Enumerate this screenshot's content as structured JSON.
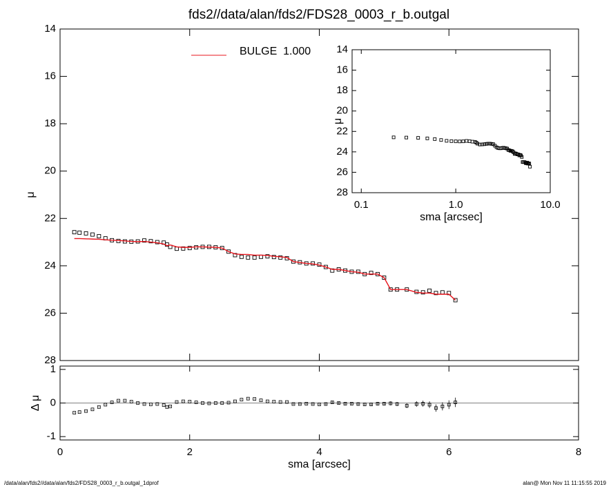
{
  "footer_left": "/data/alan/fds2//data/alan/fds2/FDS28_0003_r_b.outgal_1dprof",
  "footer_right": "alan@  Mon Nov 11 11:15:55 2019",
  "chart_data": [
    {
      "type": "line",
      "title": "fds2//data/alan/fds2/FDS28_0003_r_b.outgal",
      "ylabel": "μ",
      "x": [
        0.22,
        0.3,
        0.4,
        0.5,
        0.6,
        0.7,
        0.8,
        0.9,
        1.0,
        1.1,
        1.2,
        1.3,
        1.4,
        1.5,
        1.6,
        1.65,
        1.7,
        1.8,
        1.9,
        2.0,
        2.1,
        2.2,
        2.3,
        2.4,
        2.5,
        2.6,
        2.7,
        2.8,
        2.9,
        3.0,
        3.1,
        3.2,
        3.3,
        3.4,
        3.5,
        3.6,
        3.7,
        3.8,
        3.9,
        4.0,
        4.1,
        4.2,
        4.3,
        4.4,
        4.5,
        4.6,
        4.7,
        4.8,
        4.9,
        5.0,
        5.1,
        5.2,
        5.35,
        5.5,
        5.6,
        5.7,
        5.8,
        5.9,
        6.0,
        6.1
      ],
      "series": [
        {
          "color": "#000000",
          "marker": "square",
          "values": [
            22.58,
            22.6,
            22.63,
            22.68,
            22.75,
            22.84,
            22.92,
            22.95,
            22.97,
            22.98,
            22.97,
            22.93,
            22.96,
            23.0,
            23.02,
            23.1,
            23.2,
            23.28,
            23.27,
            23.25,
            23.22,
            23.2,
            23.2,
            23.22,
            23.25,
            23.4,
            23.55,
            23.62,
            23.65,
            23.65,
            23.62,
            23.6,
            23.63,
            23.65,
            23.68,
            23.82,
            23.85,
            23.9,
            23.9,
            23.95,
            24.05,
            24.2,
            24.15,
            24.2,
            24.25,
            24.25,
            24.35,
            24.3,
            24.35,
            24.5,
            25.0,
            25.0,
            25.0,
            25.1,
            25.12,
            25.05,
            25.15,
            25.12,
            25.15,
            25.45
          ]
        },
        {
          "name": "BULGE  1.000",
          "color": "#e8141c",
          "values": [
            22.85,
            22.85,
            22.86,
            22.87,
            22.88,
            22.9,
            22.92,
            22.93,
            22.95,
            22.97,
            22.98,
            22.97,
            23.0,
            23.03,
            23.08,
            23.15,
            23.12,
            23.2,
            23.22,
            23.22,
            23.2,
            23.2,
            23.21,
            23.22,
            23.25,
            23.4,
            23.5,
            23.52,
            23.52,
            23.55,
            23.55,
            23.56,
            23.6,
            23.62,
            23.65,
            23.82,
            23.86,
            23.9,
            23.92,
            23.97,
            24.05,
            24.15,
            24.15,
            24.2,
            24.25,
            24.27,
            24.35,
            24.35,
            24.35,
            24.5,
            25.0,
            25.0,
            25.0,
            25.12,
            25.15,
            25.15,
            25.2,
            25.2,
            25.2,
            25.45
          ]
        }
      ],
      "xlim": [
        0,
        8
      ],
      "xticks": [
        0,
        2,
        4,
        6,
        8
      ],
      "ylim": [
        14,
        28
      ],
      "yticks": [
        14,
        16,
        18,
        20,
        22,
        24,
        26,
        28
      ],
      "y_inverted": true,
      "legend": "top"
    },
    {
      "type": "scatter",
      "xlabel": "sma [arcsec]",
      "ylabel": "Δ μ",
      "values": [
        -0.29,
        -0.27,
        -0.24,
        -0.19,
        -0.12,
        -0.05,
        0.02,
        0.07,
        0.07,
        0.04,
        0.0,
        -0.03,
        -0.04,
        -0.03,
        -0.06,
        -0.12,
        -0.1,
        0.03,
        0.05,
        0.04,
        0.02,
        0.0,
        -0.01,
        0.0,
        0.0,
        0.01,
        0.05,
        0.1,
        0.13,
        0.12,
        0.08,
        0.05,
        0.04,
        0.03,
        0.03,
        -0.03,
        -0.03,
        -0.02,
        -0.03,
        -0.04,
        -0.03,
        0.02,
        0.0,
        -0.02,
        -0.02,
        -0.03,
        -0.04,
        -0.04,
        -0.02,
        -0.02,
        -0.01,
        -0.03,
        -0.08,
        -0.03,
        -0.02,
        -0.05,
        -0.15,
        -0.1,
        -0.05,
        0.02
      ],
      "errors": [
        0.01,
        0.01,
        0.01,
        0.01,
        0.01,
        0.01,
        0.01,
        0.01,
        0.01,
        0.01,
        0.01,
        0.01,
        0.01,
        0.01,
        0.01,
        0.01,
        0.01,
        0.01,
        0.01,
        0.01,
        0.01,
        0.01,
        0.01,
        0.01,
        0.01,
        0.01,
        0.01,
        0.01,
        0.01,
        0.01,
        0.01,
        0.01,
        0.01,
        0.01,
        0.01,
        0.02,
        0.02,
        0.02,
        0.02,
        0.02,
        0.03,
        0.03,
        0.03,
        0.03,
        0.03,
        0.04,
        0.04,
        0.04,
        0.05,
        0.05,
        0.06,
        0.06,
        0.07,
        0.08,
        0.09,
        0.1,
        0.11,
        0.12,
        0.13,
        0.14
      ],
      "xlim": [
        0,
        8
      ],
      "xticks": [
        0,
        2,
        4,
        6,
        8
      ],
      "ylim": [
        -1.1,
        1.1
      ],
      "yticks": [
        -1,
        0,
        1
      ],
      "zero_line": true
    },
    {
      "type": "line",
      "xlabel": "sma [arcsec]",
      "ylabel": "μ",
      "xlog": true,
      "xlim": [
        0.08,
        10
      ],
      "xticks": [
        0.1,
        {
          "value": 1,
          "label": "1.0"
        },
        {
          "value": 10,
          "label": "10.0"
        }
      ],
      "ylim": [
        14,
        28
      ],
      "yticks": [
        14,
        16,
        18,
        20,
        22,
        24,
        26,
        28
      ],
      "y_inverted": true
    }
  ]
}
